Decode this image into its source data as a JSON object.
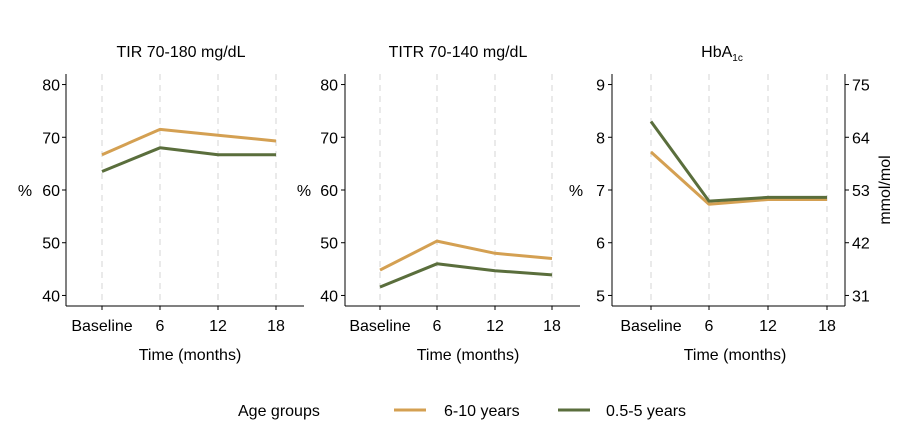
{
  "legend": {
    "title": "Age groups",
    "entries": [
      {
        "label": "6-10 years",
        "color": "#d4a052"
      },
      {
        "label": "0.5-5 years",
        "color": "#5a6e3c"
      }
    ]
  },
  "chart_data": [
    {
      "type": "line",
      "title": "TIR 70-180 mg/dL",
      "xlabel": "Time (months)",
      "ylabel": "%",
      "categories": [
        "Baseline",
        "6",
        "12",
        "18"
      ],
      "ylim": [
        38,
        82
      ],
      "yticks": [
        40,
        50,
        60,
        70,
        80
      ],
      "grid": "vertical dashed",
      "series": [
        {
          "name": "6-10 years",
          "color": "#d4a052",
          "values": [
            66.7,
            71.5,
            70.4,
            69.3
          ]
        },
        {
          "name": "0.5-5 years",
          "color": "#5a6e3c",
          "values": [
            63.5,
            68.0,
            66.7,
            66.7
          ]
        }
      ]
    },
    {
      "type": "line",
      "title": "TITR 70-140 mg/dL",
      "xlabel": "Time (months)",
      "ylabel": "%",
      "categories": [
        "Baseline",
        "6",
        "12",
        "18"
      ],
      "ylim": [
        38,
        82
      ],
      "yticks": [
        40,
        50,
        60,
        70,
        80
      ],
      "grid": "vertical dashed",
      "series": [
        {
          "name": "6-10 years",
          "color": "#d4a052",
          "values": [
            44.8,
            50.3,
            48.0,
            47.0
          ]
        },
        {
          "name": "0.5-5 years",
          "color": "#5a6e3c",
          "values": [
            41.6,
            46.0,
            44.7,
            43.9
          ]
        }
      ]
    },
    {
      "type": "line",
      "title": "HbA",
      "title_subscript": "1c",
      "xlabel": "Time (months)",
      "ylabel": "%",
      "ylabel_right": "mmol/mol",
      "categories": [
        "Baseline",
        "6",
        "12",
        "18"
      ],
      "ylim": [
        4.8,
        9.2
      ],
      "yticks": [
        5,
        6,
        7,
        8,
        9
      ],
      "yticks_right": [
        31,
        42,
        53,
        64,
        75
      ],
      "grid": "vertical dashed",
      "series": [
        {
          "name": "6-10 years",
          "color": "#d4a052",
          "values": [
            7.72,
            6.73,
            6.82,
            6.82
          ]
        },
        {
          "name": "0.5-5 years",
          "color": "#5a6e3c",
          "values": [
            8.3,
            6.79,
            6.86,
            6.86
          ]
        }
      ]
    }
  ]
}
